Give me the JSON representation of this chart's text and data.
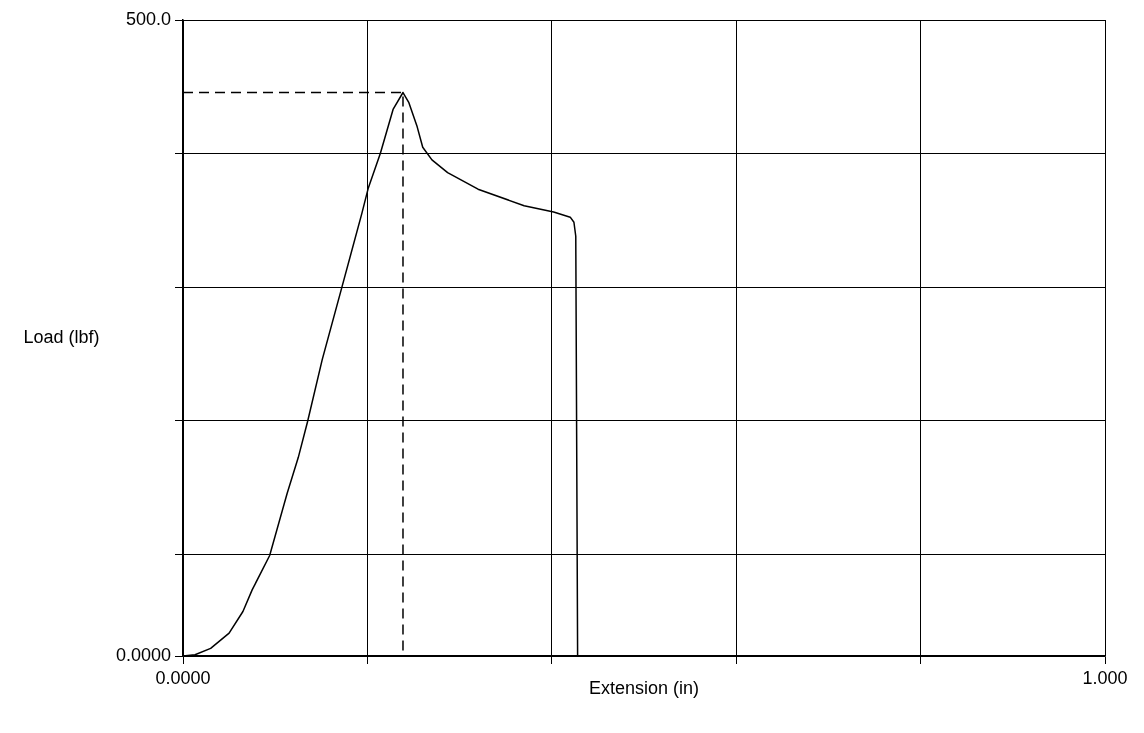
{
  "chart_data": {
    "type": "line",
    "xlabel": "Extension (in)",
    "ylabel": "Load (lbf)",
    "xlim": [
      0,
      1
    ],
    "ylim": [
      0,
      500
    ],
    "xticks": [
      {
        "value": 0,
        "label": "0.0000"
      },
      {
        "value": 0.2,
        "label": null
      },
      {
        "value": 0.4,
        "label": null
      },
      {
        "value": 0.6,
        "label": null
      },
      {
        "value": 0.8,
        "label": null
      },
      {
        "value": 1,
        "label": "1.000"
      }
    ],
    "yticks": [
      {
        "value": 0,
        "label": "0.0000"
      },
      {
        "value": 80,
        "label": null
      },
      {
        "value": 185,
        "label": null
      },
      {
        "value": 290,
        "label": null
      },
      {
        "value": 395,
        "label": null
      },
      {
        "value": 500,
        "label": "500.0"
      }
    ],
    "grid": true,
    "legend": false,
    "marker": "none",
    "series": [
      {
        "color": "#000000",
        "line_style": "solid",
        "x": [
          0,
          0.013,
          0.03,
          0.05,
          0.065,
          0.075,
          0.094,
          0.113,
          0.125,
          0.135,
          0.151,
          0.172,
          0.194,
          0.201,
          0.214,
          0.228,
          0.2386,
          0.245,
          0.254,
          0.26,
          0.27,
          0.287,
          0.32,
          0.37,
          0.402,
          0.42,
          0.424,
          0.426,
          0.428
        ],
        "values": [
          0,
          1,
          6,
          18,
          35,
          52,
          79,
          128,
          156,
          184,
          233,
          289,
          348,
          368,
          395,
          430,
          443,
          435,
          416,
          400,
          390,
          380,
          367,
          354,
          349,
          345,
          341,
          330,
          0
        ]
      },
      {
        "color": "#000000",
        "line_style": "dashed",
        "x": [
          0,
          0.2386,
          0.2386
        ],
        "values": [
          443,
          443,
          0
        ]
      }
    ]
  }
}
